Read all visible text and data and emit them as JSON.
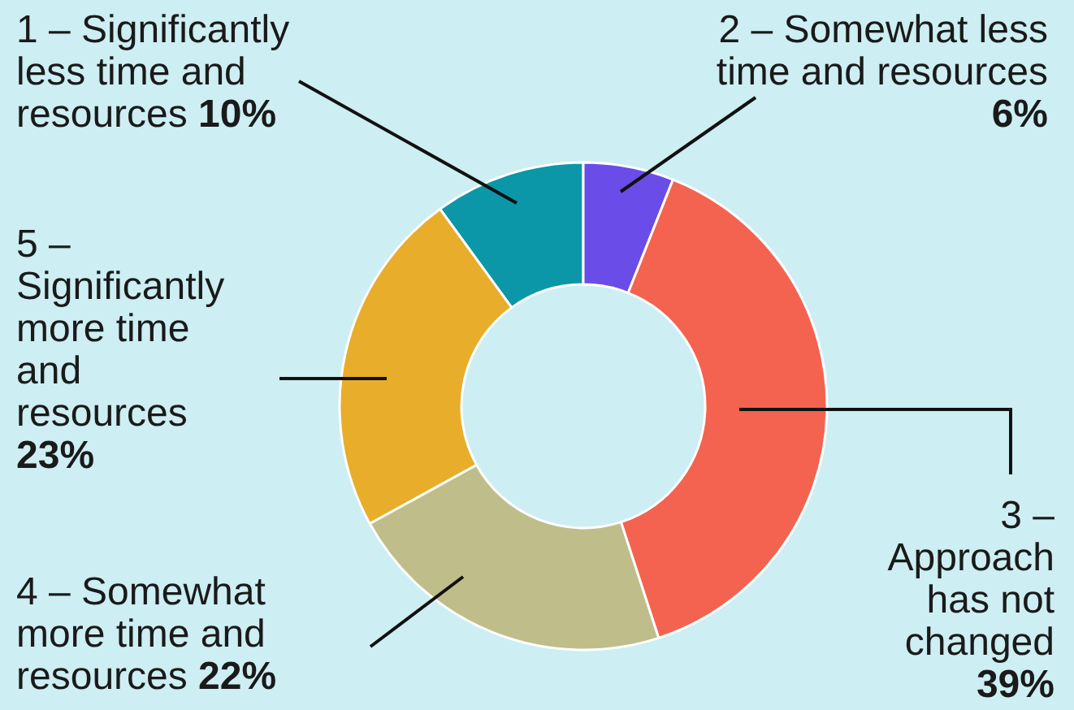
{
  "chart_data": {
    "type": "donut",
    "categories": [
      "1 – Significantly less time and resources",
      "2 – Somewhat less time and resources",
      "3 – Approach has not changed",
      "4 – Somewhat more time and resources",
      "5 – Significantly more time and resources"
    ],
    "values": [
      10,
      6,
      39,
      22,
      23
    ],
    "value_labels": [
      "10%",
      "6%",
      "39%",
      "22%",
      "23%"
    ],
    "colors": [
      "#0b97a8",
      "#6a4ce8",
      "#f4634f",
      "#bfbe8a",
      "#e8ad2a"
    ]
  }
}
